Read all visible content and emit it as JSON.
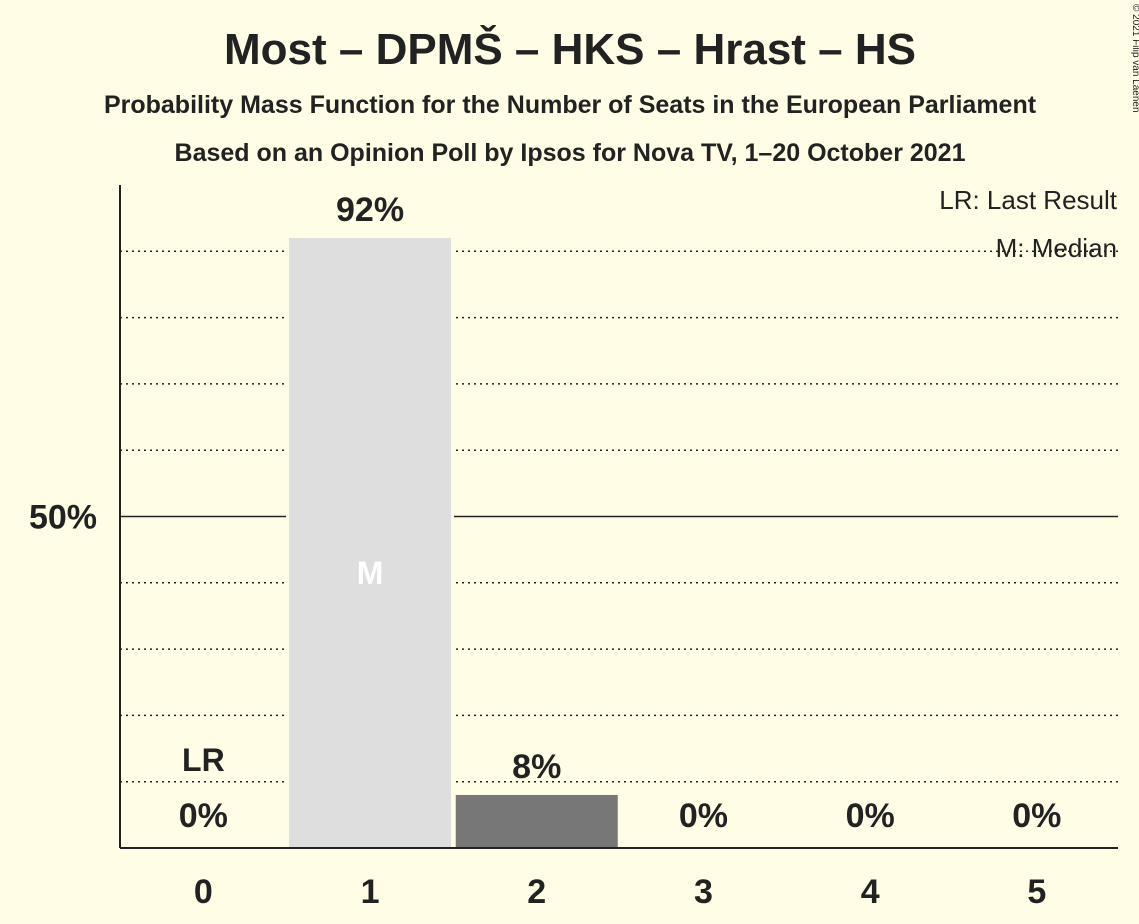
{
  "header": {
    "title": "Most – DPMŠ – HKS – Hrast – HS",
    "subtitle_1": "Probability Mass Function for the Number of Seats in the European Parliament",
    "subtitle_2": "Based on an Opinion Poll by Ipsos for Nova TV, 1–20 October 2021"
  },
  "copyright": "© 2021 Filip van Laenen",
  "legend": {
    "last_result": "LR: Last Result",
    "median": "M: Median",
    "placement": "top-right"
  },
  "colors": {
    "background": "#fffde6",
    "median_bar": "#dedede",
    "other_bar": "#777777",
    "text": "#222222"
  },
  "chart_data": {
    "type": "bar",
    "categories": [
      "0",
      "1",
      "2",
      "3",
      "4",
      "5"
    ],
    "values": [
      0,
      92,
      8,
      0,
      0,
      0
    ],
    "value_labels": [
      "0%",
      "92%",
      "8%",
      "0%",
      "0%",
      "0%"
    ],
    "ylim": [
      0,
      100
    ],
    "y_ticks": [
      {
        "value": 50,
        "label": "50%"
      }
    ],
    "gridlines": [
      10,
      20,
      30,
      40,
      60,
      70,
      80,
      90
    ],
    "median_index": 1,
    "median_marker": "M",
    "last_result_index": 0,
    "last_result_marker": "LR",
    "xlabel": "",
    "ylabel": ""
  }
}
